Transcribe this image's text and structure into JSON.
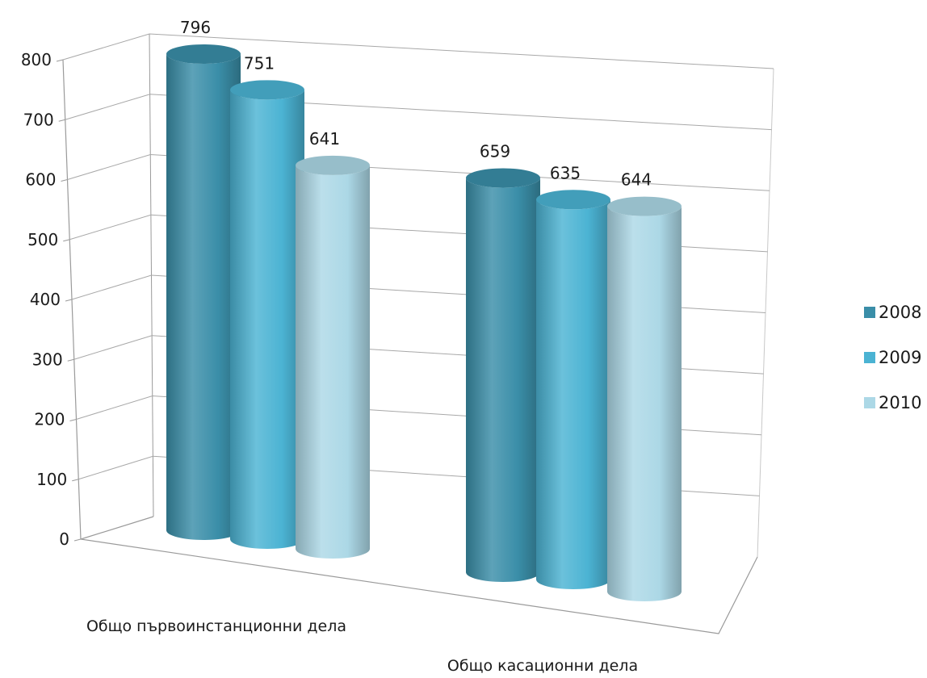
{
  "chart_data": {
    "type": "bar",
    "style": "3d-cylinder",
    "categories": [
      "Общо първоинстанционни дела",
      "Общо касационни дела"
    ],
    "series": [
      {
        "name": "2008",
        "values": [
          796,
          659
        ],
        "color": "#3a8ea8"
      },
      {
        "name": "2009",
        "values": [
          751,
          635
        ],
        "color": "#4bb3d3"
      },
      {
        "name": "2010",
        "values": [
          641,
          644
        ],
        "color": "#acd8e6"
      }
    ],
    "y_ticks": [
      "0",
      "100",
      "200",
      "300",
      "400",
      "500",
      "600",
      "700",
      "800"
    ],
    "ylim": [
      0,
      800
    ],
    "grid": true,
    "legend_position": "right"
  }
}
